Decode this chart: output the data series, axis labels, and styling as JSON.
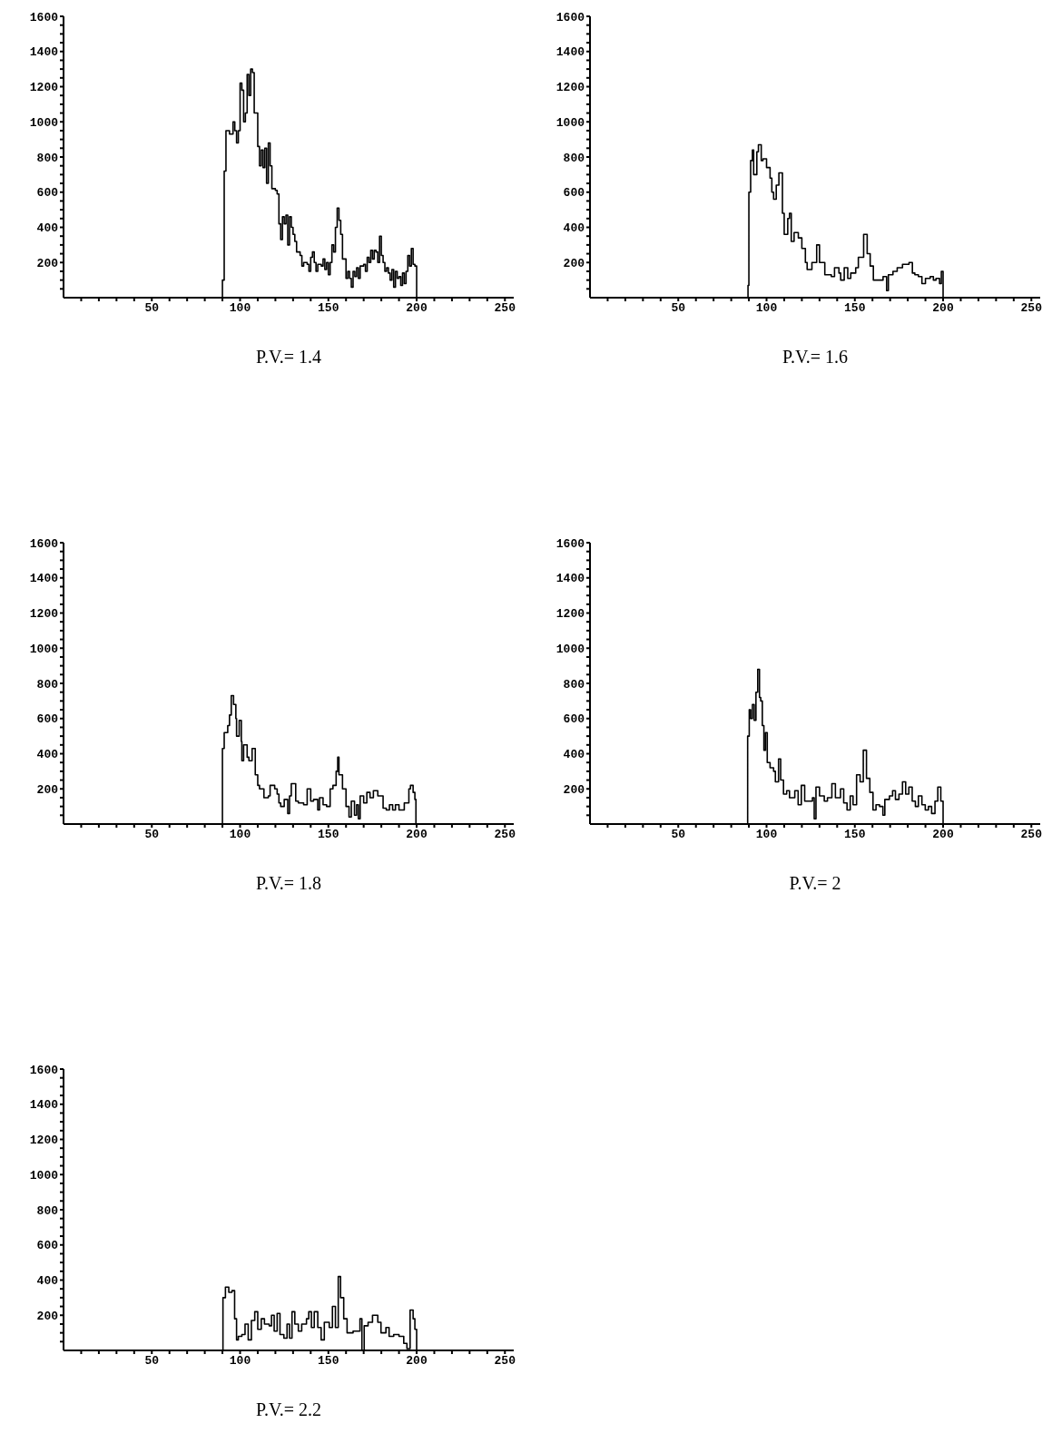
{
  "chart_data": [
    {
      "type": "step",
      "xlabel": "P.V.= 1.4",
      "color": "#000000",
      "xlim": [
        0,
        255
      ],
      "ylim": [
        0,
        1600
      ],
      "grid": false,
      "marker": "none",
      "line_style": "solid",
      "xticks": [
        {
          "value": 10,
          "label": null
        },
        {
          "value": 20,
          "label": null
        },
        {
          "value": 30,
          "label": null
        },
        {
          "value": 40,
          "label": null
        },
        50,
        {
          "value": 60,
          "label": null
        },
        {
          "value": 70,
          "label": null
        },
        {
          "value": 80,
          "label": null
        },
        {
          "value": 90,
          "label": null
        },
        100,
        {
          "value": 110,
          "label": null
        },
        {
          "value": 120,
          "label": null
        },
        {
          "value": 130,
          "label": null
        },
        {
          "value": 140,
          "label": null
        },
        150,
        {
          "value": 160,
          "label": null
        },
        {
          "value": 170,
          "label": null
        },
        {
          "value": 180,
          "label": null
        },
        {
          "value": 190,
          "label": null
        },
        200,
        {
          "value": 210,
          "label": null
        },
        {
          "value": 220,
          "label": null
        },
        {
          "value": 230,
          "label": null
        },
        {
          "value": 240,
          "label": null
        },
        250
      ],
      "yticks": [
        {
          "value": 50,
          "label": null
        },
        {
          "value": 100,
          "label": null
        },
        {
          "value": 150,
          "label": null
        },
        200,
        {
          "value": 250,
          "label": null
        },
        {
          "value": 300,
          "label": null
        },
        {
          "value": 350,
          "label": null
        },
        400,
        {
          "value": 450,
          "label": null
        },
        {
          "value": 500,
          "label": null
        },
        {
          "value": 550,
          "label": null
        },
        600,
        {
          "value": 650,
          "label": null
        },
        {
          "value": 700,
          "label": null
        },
        {
          "value": 750,
          "label": null
        },
        800,
        {
          "value": 850,
          "label": null
        },
        {
          "value": 900,
          "label": null
        },
        {
          "value": 950,
          "label": null
        },
        1000,
        {
          "value": 1050,
          "label": null
        },
        {
          "value": 1100,
          "label": null
        },
        {
          "value": 1150,
          "label": null
        },
        1200,
        {
          "value": 1250,
          "label": null
        },
        {
          "value": 1300,
          "label": null
        },
        {
          "value": 1350,
          "label": null
        },
        1400,
        {
          "value": 1450,
          "label": null
        },
        {
          "value": 1500,
          "label": null
        },
        {
          "value": 1550,
          "label": null
        },
        1600
      ],
      "x": [
        0,
        89.5,
        90,
        91,
        92,
        94,
        96,
        97,
        98,
        99,
        100,
        101,
        102,
        103,
        104,
        105,
        106,
        107,
        108,
        110,
        111,
        112,
        113,
        114,
        115,
        116,
        117,
        118,
        120,
        121,
        122,
        123,
        124,
        125,
        126,
        127,
        128,
        129,
        130,
        131,
        132,
        134,
        135,
        136,
        138,
        139,
        140,
        141,
        142,
        143,
        144,
        146,
        147,
        148,
        149,
        150,
        151,
        152,
        153,
        154,
        155,
        156,
        157,
        158,
        160,
        161,
        162,
        163,
        164,
        165,
        166,
        167,
        168,
        170,
        171,
        172,
        173,
        174,
        175,
        176,
        177,
        178,
        179,
        180,
        181,
        182,
        183,
        184,
        185,
        186,
        187,
        188,
        189,
        190,
        191,
        192,
        193,
        194,
        195,
        196,
        197,
        198,
        199,
        200,
        255
      ],
      "values": [
        0,
        0,
        100,
        720,
        950,
        930,
        1000,
        950,
        880,
        950,
        1220,
        1180,
        1000,
        1050,
        1270,
        1150,
        1300,
        1280,
        1050,
        860,
        750,
        840,
        740,
        850,
        650,
        880,
        750,
        620,
        610,
        590,
        420,
        330,
        460,
        420,
        470,
        300,
        460,
        400,
        360,
        320,
        260,
        240,
        180,
        200,
        190,
        150,
        230,
        260,
        200,
        150,
        190,
        180,
        220,
        160,
        200,
        130,
        200,
        300,
        260,
        400,
        510,
        440,
        360,
        220,
        110,
        150,
        110,
        60,
        150,
        120,
        170,
        110,
        180,
        190,
        150,
        230,
        200,
        270,
        220,
        270,
        260,
        200,
        350,
        240,
        200,
        150,
        170,
        140,
        100,
        160,
        60,
        150,
        110,
        120,
        70,
        140,
        80,
        150,
        240,
        180,
        280,
        190,
        180,
        0,
        0
      ]
    },
    {
      "type": "step",
      "xlabel": "P.V.= 1.6",
      "color": "#000000",
      "xlim": [
        0,
        255
      ],
      "ylim": [
        0,
        1600
      ],
      "grid": false,
      "marker": "none",
      "line_style": "solid",
      "xticks": [
        {
          "value": 10,
          "label": null
        },
        {
          "value": 20,
          "label": null
        },
        {
          "value": 30,
          "label": null
        },
        {
          "value": 40,
          "label": null
        },
        50,
        {
          "value": 60,
          "label": null
        },
        {
          "value": 70,
          "label": null
        },
        {
          "value": 80,
          "label": null
        },
        {
          "value": 90,
          "label": null
        },
        100,
        {
          "value": 110,
          "label": null
        },
        {
          "value": 120,
          "label": null
        },
        {
          "value": 130,
          "label": null
        },
        {
          "value": 140,
          "label": null
        },
        150,
        {
          "value": 160,
          "label": null
        },
        {
          "value": 170,
          "label": null
        },
        {
          "value": 180,
          "label": null
        },
        {
          "value": 190,
          "label": null
        },
        200,
        {
          "value": 210,
          "label": null
        },
        {
          "value": 220,
          "label": null
        },
        {
          "value": 230,
          "label": null
        },
        {
          "value": 240,
          "label": null
        },
        250
      ],
      "yticks": [
        {
          "value": 50,
          "label": null
        },
        {
          "value": 100,
          "label": null
        },
        {
          "value": 150,
          "label": null
        },
        200,
        {
          "value": 250,
          "label": null
        },
        {
          "value": 300,
          "label": null
        },
        {
          "value": 350,
          "label": null
        },
        400,
        {
          "value": 450,
          "label": null
        },
        {
          "value": 500,
          "label": null
        },
        {
          "value": 550,
          "label": null
        },
        600,
        {
          "value": 650,
          "label": null
        },
        {
          "value": 700,
          "label": null
        },
        {
          "value": 750,
          "label": null
        },
        800,
        {
          "value": 850,
          "label": null
        },
        {
          "value": 900,
          "label": null
        },
        {
          "value": 950,
          "label": null
        },
        1000,
        {
          "value": 1050,
          "label": null
        },
        {
          "value": 1100,
          "label": null
        },
        {
          "value": 1150,
          "label": null
        },
        1200,
        {
          "value": 1250,
          "label": null
        },
        {
          "value": 1300,
          "label": null
        },
        {
          "value": 1350,
          "label": null
        },
        1400,
        {
          "value": 1450,
          "label": null
        },
        {
          "value": 1500,
          "label": null
        },
        {
          "value": 1550,
          "label": null
        },
        1600
      ],
      "x": [
        0,
        89.5,
        90,
        91,
        92,
        92.7,
        94.5,
        95.4,
        97,
        98,
        100,
        102,
        103,
        104,
        105.5,
        107,
        109,
        110,
        112,
        113,
        114,
        115.6,
        118,
        120,
        122,
        123,
        125.7,
        128.4,
        130,
        133,
        136.7,
        138.5,
        141,
        142,
        144,
        146,
        147.7,
        150.5,
        152,
        155,
        157,
        158.7,
        160.5,
        165,
        166,
        168,
        169,
        171.6,
        174,
        177,
        180.7,
        182.6,
        184,
        186,
        188,
        190,
        192.7,
        194.5,
        196,
        198,
        199,
        200,
        255
      ],
      "values": [
        0,
        70,
        600,
        780,
        840,
        700,
        830,
        870,
        780,
        790,
        740,
        680,
        600,
        560,
        640,
        710,
        480,
        360,
        450,
        480,
        320,
        370,
        340,
        280,
        200,
        160,
        200,
        300,
        200,
        130,
        120,
        170,
        140,
        100,
        170,
        110,
        140,
        170,
        230,
        360,
        250,
        180,
        100,
        100,
        120,
        40,
        130,
        150,
        170,
        190,
        200,
        140,
        130,
        120,
        80,
        110,
        120,
        100,
        110,
        80,
        150,
        0,
        0
      ]
    },
    {
      "type": "step",
      "xlabel": "P.V.= 1.8",
      "color": "#000000",
      "xlim": [
        0,
        255
      ],
      "ylim": [
        0,
        1600
      ],
      "grid": false,
      "marker": "none",
      "line_style": "solid",
      "xticks": [
        {
          "value": 10,
          "label": null
        },
        {
          "value": 20,
          "label": null
        },
        {
          "value": 30,
          "label": null
        },
        {
          "value": 40,
          "label": null
        },
        50,
        {
          "value": 60,
          "label": null
        },
        {
          "value": 70,
          "label": null
        },
        {
          "value": 80,
          "label": null
        },
        {
          "value": 90,
          "label": null
        },
        100,
        {
          "value": 110,
          "label": null
        },
        {
          "value": 120,
          "label": null
        },
        {
          "value": 130,
          "label": null
        },
        {
          "value": 140,
          "label": null
        },
        150,
        {
          "value": 160,
          "label": null
        },
        {
          "value": 170,
          "label": null
        },
        {
          "value": 180,
          "label": null
        },
        {
          "value": 190,
          "label": null
        },
        200,
        {
          "value": 210,
          "label": null
        },
        {
          "value": 220,
          "label": null
        },
        {
          "value": 230,
          "label": null
        },
        {
          "value": 240,
          "label": null
        },
        250
      ],
      "yticks": [
        {
          "value": 50,
          "label": null
        },
        {
          "value": 100,
          "label": null
        },
        {
          "value": 150,
          "label": null
        },
        200,
        {
          "value": 250,
          "label": null
        },
        {
          "value": 300,
          "label": null
        },
        {
          "value": 350,
          "label": null
        },
        400,
        {
          "value": 450,
          "label": null
        },
        {
          "value": 500,
          "label": null
        },
        {
          "value": 550,
          "label": null
        },
        600,
        {
          "value": 650,
          "label": null
        },
        {
          "value": 700,
          "label": null
        },
        {
          "value": 750,
          "label": null
        },
        800,
        {
          "value": 850,
          "label": null
        },
        {
          "value": 900,
          "label": null
        },
        {
          "value": 950,
          "label": null
        },
        1000,
        {
          "value": 1050,
          "label": null
        },
        {
          "value": 1100,
          "label": null
        },
        {
          "value": 1150,
          "label": null
        },
        1200,
        {
          "value": 1250,
          "label": null
        },
        {
          "value": 1300,
          "label": null
        },
        {
          "value": 1350,
          "label": null
        },
        1400,
        {
          "value": 1450,
          "label": null
        },
        {
          "value": 1500,
          "label": null
        },
        {
          "value": 1550,
          "label": null
        },
        1600
      ],
      "x": [
        0,
        89.4,
        90,
        91,
        93,
        94,
        95,
        96.3,
        97.6,
        98,
        99.5,
        100.7,
        101,
        102,
        104,
        105,
        106.8,
        108.6,
        110,
        111,
        113.5,
        116,
        117,
        119.6,
        121,
        122,
        123,
        125,
        127,
        128,
        129,
        131.5,
        133,
        136,
        138,
        140,
        141.6,
        144,
        145,
        147,
        149,
        151,
        152.6,
        154.4,
        155.3,
        156,
        158,
        160,
        161.7,
        163,
        164.8,
        166,
        167,
        168,
        170,
        171.8,
        173.6,
        175.5,
        178,
        181,
        182.8,
        184.6,
        186.4,
        188,
        190,
        193,
        195.6,
        196.5,
        198,
        199,
        199.6,
        255
      ],
      "values": [
        0,
        0,
        430,
        520,
        560,
        620,
        730,
        680,
        600,
        500,
        590,
        470,
        360,
        450,
        380,
        360,
        430,
        280,
        220,
        200,
        150,
        160,
        220,
        200,
        170,
        120,
        100,
        140,
        60,
        160,
        230,
        130,
        120,
        110,
        200,
        130,
        140,
        80,
        150,
        110,
        100,
        200,
        220,
        300,
        380,
        280,
        200,
        100,
        40,
        130,
        50,
        110,
        30,
        160,
        120,
        180,
        150,
        190,
        160,
        90,
        80,
        110,
        80,
        110,
        80,
        120,
        200,
        220,
        180,
        140,
        0,
        0
      ]
    },
    {
      "type": "step",
      "xlabel": "P.V.= 2",
      "color": "#000000",
      "xlim": [
        0,
        255
      ],
      "ylim": [
        0,
        1600
      ],
      "grid": false,
      "marker": "none",
      "line_style": "solid",
      "xticks": [
        {
          "value": 10,
          "label": null
        },
        {
          "value": 20,
          "label": null
        },
        {
          "value": 30,
          "label": null
        },
        {
          "value": 40,
          "label": null
        },
        50,
        {
          "value": 60,
          "label": null
        },
        {
          "value": 70,
          "label": null
        },
        {
          "value": 80,
          "label": null
        },
        {
          "value": 90,
          "label": null
        },
        100,
        {
          "value": 110,
          "label": null
        },
        {
          "value": 120,
          "label": null
        },
        {
          "value": 130,
          "label": null
        },
        {
          "value": 140,
          "label": null
        },
        150,
        {
          "value": 160,
          "label": null
        },
        {
          "value": 170,
          "label": null
        },
        {
          "value": 180,
          "label": null
        },
        {
          "value": 190,
          "label": null
        },
        200,
        {
          "value": 210,
          "label": null
        },
        {
          "value": 220,
          "label": null
        },
        {
          "value": 230,
          "label": null
        },
        {
          "value": 240,
          "label": null
        },
        250
      ],
      "yticks": [
        {
          "value": 50,
          "label": null
        },
        {
          "value": 100,
          "label": null
        },
        {
          "value": 150,
          "label": null
        },
        200,
        {
          "value": 250,
          "label": null
        },
        {
          "value": 300,
          "label": null
        },
        {
          "value": 350,
          "label": null
        },
        400,
        {
          "value": 450,
          "label": null
        },
        {
          "value": 500,
          "label": null
        },
        {
          "value": 550,
          "label": null
        },
        600,
        {
          "value": 650,
          "label": null
        },
        {
          "value": 700,
          "label": null
        },
        {
          "value": 750,
          "label": null
        },
        800,
        {
          "value": 850,
          "label": null
        },
        {
          "value": 900,
          "label": null
        },
        {
          "value": 950,
          "label": null
        },
        1000,
        {
          "value": 1050,
          "label": null
        },
        {
          "value": 1100,
          "label": null
        },
        {
          "value": 1150,
          "label": null
        },
        1200,
        {
          "value": 1250,
          "label": null
        },
        {
          "value": 1300,
          "label": null
        },
        {
          "value": 1350,
          "label": null
        },
        1400,
        {
          "value": 1450,
          "label": null
        },
        {
          "value": 1500,
          "label": null
        },
        {
          "value": 1550,
          "label": null
        },
        1600
      ],
      "x": [
        0,
        89.3,
        90.2,
        91,
        92,
        93,
        94,
        95,
        96,
        96.7,
        97.6,
        98.5,
        99.4,
        100.4,
        102,
        104,
        105,
        106.8,
        108,
        109.6,
        111.4,
        113,
        116,
        117.9,
        119.7,
        121.6,
        126,
        127,
        128,
        130,
        132.7,
        134.5,
        137,
        139,
        141.9,
        143.7,
        145.6,
        147.4,
        149,
        151,
        153,
        154.8,
        156.6,
        158.5,
        160.3,
        162,
        164,
        165.9,
        167,
        169.6,
        171.4,
        173,
        175,
        177,
        178.8,
        180.6,
        182.5,
        184.3,
        186,
        188,
        189.9,
        191.7,
        193.5,
        195.4,
        197,
        198.7,
        200,
        255
      ],
      "values": [
        0,
        500,
        650,
        600,
        680,
        590,
        750,
        880,
        720,
        700,
        560,
        420,
        520,
        350,
        320,
        300,
        240,
        370,
        250,
        170,
        190,
        150,
        190,
        110,
        220,
        130,
        150,
        30,
        210,
        160,
        130,
        150,
        230,
        150,
        200,
        120,
        80,
        160,
        110,
        280,
        240,
        420,
        260,
        180,
        80,
        110,
        100,
        50,
        140,
        160,
        190,
        140,
        170,
        240,
        170,
        210,
        130,
        100,
        160,
        110,
        80,
        100,
        60,
        130,
        210,
        130,
        0,
        0
      ]
    },
    {
      "type": "step",
      "xlabel": "P.V.= 2.2",
      "color": "#000000",
      "xlim": [
        0,
        255
      ],
      "ylim": [
        0,
        1600
      ],
      "grid": false,
      "marker": "none",
      "line_style": "solid",
      "xticks": [
        {
          "value": 10,
          "label": null
        },
        {
          "value": 20,
          "label": null
        },
        {
          "value": 30,
          "label": null
        },
        {
          "value": 40,
          "label": null
        },
        50,
        {
          "value": 60,
          "label": null
        },
        {
          "value": 70,
          "label": null
        },
        {
          "value": 80,
          "label": null
        },
        {
          "value": 90,
          "label": null
        },
        100,
        {
          "value": 110,
          "label": null
        },
        {
          "value": 120,
          "label": null
        },
        {
          "value": 130,
          "label": null
        },
        {
          "value": 140,
          "label": null
        },
        150,
        {
          "value": 160,
          "label": null
        },
        {
          "value": 170,
          "label": null
        },
        {
          "value": 180,
          "label": null
        },
        {
          "value": 190,
          "label": null
        },
        200,
        {
          "value": 210,
          "label": null
        },
        {
          "value": 220,
          "label": null
        },
        {
          "value": 230,
          "label": null
        },
        {
          "value": 240,
          "label": null
        },
        250
      ],
      "yticks": [
        {
          "value": 50,
          "label": null
        },
        {
          "value": 100,
          "label": null
        },
        {
          "value": 150,
          "label": null
        },
        200,
        {
          "value": 250,
          "label": null
        },
        {
          "value": 300,
          "label": null
        },
        {
          "value": 350,
          "label": null
        },
        400,
        {
          "value": 450,
          "label": null
        },
        {
          "value": 500,
          "label": null
        },
        {
          "value": 550,
          "label": null
        },
        600,
        {
          "value": 650,
          "label": null
        },
        {
          "value": 700,
          "label": null
        },
        {
          "value": 750,
          "label": null
        },
        800,
        {
          "value": 850,
          "label": null
        },
        {
          "value": 900,
          "label": null
        },
        {
          "value": 950,
          "label": null
        },
        1000,
        {
          "value": 1050,
          "label": null
        },
        {
          "value": 1100,
          "label": null
        },
        {
          "value": 1150,
          "label": null
        },
        1200,
        {
          "value": 1250,
          "label": null
        },
        {
          "value": 1300,
          "label": null
        },
        {
          "value": 1350,
          "label": null
        },
        1400,
        {
          "value": 1450,
          "label": null
        },
        {
          "value": 1500,
          "label": null
        },
        {
          "value": 1550,
          "label": null
        },
        1600
      ],
      "x": [
        0,
        90.3,
        91.7,
        93.6,
        95.4,
        96.9,
        98,
        99,
        101,
        102.8,
        104.6,
        106.4,
        108.3,
        110,
        112,
        113.8,
        116.5,
        117.8,
        119.3,
        121,
        122.6,
        124.8,
        126.6,
        128,
        129.4,
        131,
        133,
        134.9,
        137.6,
        138.9,
        140.4,
        142,
        144,
        145.9,
        147.7,
        150.5,
        152.3,
        154,
        155.6,
        156.9,
        158.7,
        160.6,
        164,
        167.9,
        169,
        170.3,
        172.5,
        175,
        178,
        179.8,
        182.6,
        184.4,
        187,
        190,
        192.7,
        194.5,
        196.3,
        198,
        199,
        200,
        255
      ],
      "values": [
        0,
        300,
        360,
        330,
        340,
        180,
        60,
        80,
        90,
        150,
        60,
        170,
        220,
        120,
        180,
        150,
        140,
        200,
        110,
        210,
        90,
        70,
        150,
        70,
        220,
        150,
        110,
        150,
        180,
        220,
        130,
        220,
        130,
        60,
        160,
        130,
        250,
        130,
        420,
        300,
        180,
        100,
        110,
        180,
        0,
        140,
        160,
        200,
        160,
        100,
        130,
        80,
        90,
        80,
        40,
        10,
        230,
        180,
        120,
        0,
        0
      ]
    }
  ]
}
